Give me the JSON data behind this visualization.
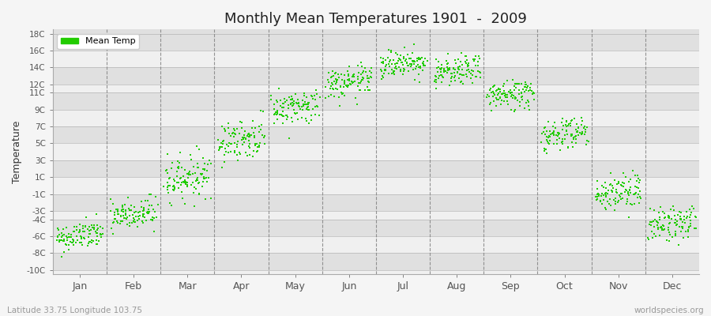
{
  "title": "Monthly Mean Temperatures 1901  -  2009",
  "ylabel": "Temperature",
  "subtitle": "Latitude 33.75 Longitude 103.75",
  "watermark": "worldspecies.org",
  "legend_label": "Mean Temp",
  "dot_color": "#22CC00",
  "dot_size": 3,
  "months": [
    "Jan",
    "Feb",
    "Mar",
    "Apr",
    "May",
    "Jun",
    "Jul",
    "Aug",
    "Sep",
    "Oct",
    "Nov",
    "Dec"
  ],
  "mean_temps": [
    -6.0,
    -3.5,
    1.0,
    5.5,
    9.3,
    12.2,
    14.5,
    13.5,
    10.8,
    6.2,
    -0.8,
    -4.5
  ],
  "std_temps": [
    1.0,
    1.2,
    1.5,
    1.4,
    1.2,
    1.1,
    1.0,
    1.0,
    1.1,
    1.2,
    1.3,
    1.2
  ],
  "n_years": 109,
  "background_color": "#f5f5f5",
  "plot_bg_color": "#f0f0f0",
  "band_color_dark": "#e0e0e0",
  "band_color_light": "#f0f0f0",
  "ytick_positions": [
    18,
    16,
    14,
    12,
    11,
    9,
    7,
    5,
    3,
    1,
    -1,
    -3,
    -4,
    -6,
    -8,
    -10
  ],
  "ytick_labels": [
    "18C",
    "16C",
    "14C",
    "12C",
    "11C",
    "9C",
    "7C",
    "5C",
    "3C",
    "1C",
    "-1C",
    "-3C",
    "-4C",
    "-6C",
    "-8C",
    "-10C"
  ]
}
